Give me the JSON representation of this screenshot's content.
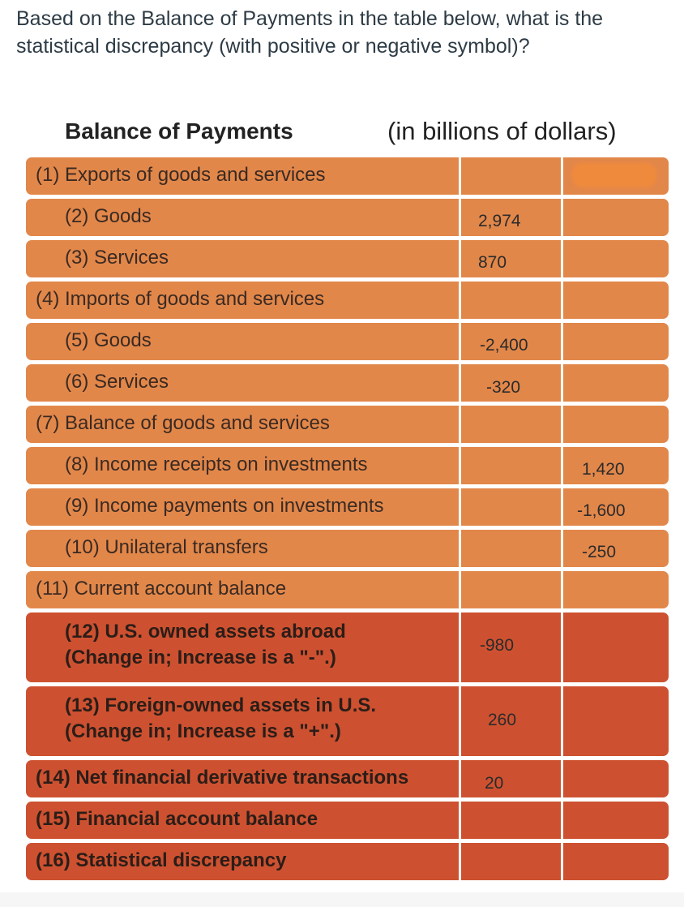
{
  "question": {
    "text": "Based on the Balance of Payments in the table below, what is the statistical discrepancy (with positive or negative symbol)?"
  },
  "table": {
    "title": "Balance of Payments",
    "units": "(in billions of dollars)",
    "rows": [
      {
        "label": "(1) Exports of goods and services",
        "col1": "",
        "col2": ""
      },
      {
        "label": "(2) Goods",
        "col1": "2,974",
        "col2": ""
      },
      {
        "label": "(3) Services",
        "col1": "870",
        "col2": ""
      },
      {
        "label": "(4) Imports of goods and services",
        "col1": "",
        "col2": ""
      },
      {
        "label": "(5) Goods",
        "col1": "-2,400",
        "col2": ""
      },
      {
        "label": "(6) Services",
        "col1": "-320",
        "col2": ""
      },
      {
        "label": "(7) Balance of goods and services",
        "col1": "",
        "col2": ""
      },
      {
        "label": "(8) Income receipts on investments",
        "col1": "",
        "col2": "1,420"
      },
      {
        "label": "(9) Income payments on investments",
        "col1": "",
        "col2": "-1,600"
      },
      {
        "label": "(10) Unilateral transfers",
        "col1": "",
        "col2": "-250"
      },
      {
        "label": "(11) Current account balance",
        "col1": "",
        "col2": ""
      },
      {
        "label": "(12) U.S. owned assets abroad",
        "label2": "(Change in; Increase is a \"-\".)",
        "col1": "-980",
        "col2": ""
      },
      {
        "label": "(13) Foreign-owned assets in U.S.",
        "label2": "(Change in; Increase is a \"+\".)",
        "col1": "260",
        "col2": ""
      },
      {
        "label": "(14) Net financial derivative transactions",
        "col1": "20",
        "col2": ""
      },
      {
        "label": "(15) Financial account balance",
        "col1": "",
        "col2": ""
      },
      {
        "label": "(16) Statistical discrepancy",
        "col1": "",
        "col2": ""
      }
    ]
  },
  "colors": {
    "row_orange": "#e2874a",
    "row_red": "#cd5130",
    "highlight": "#ef8a3c"
  }
}
